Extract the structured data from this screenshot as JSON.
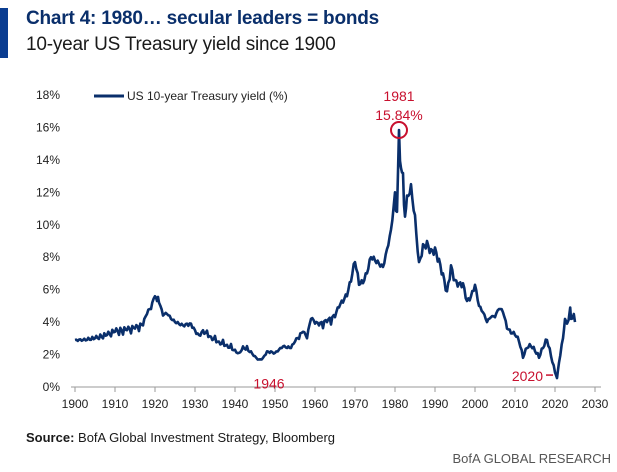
{
  "header": {
    "title": "Chart 4: 1980… secular leaders = bonds",
    "subtitle": "10-year US Treasury yield since 1900"
  },
  "footer": {
    "source_label": "Source:",
    "source_text": "BofA Global Investment Strategy, Bloomberg",
    "credit": "BofA GLOBAL RESEARCH"
  },
  "colors": {
    "series": "#0a2f6b",
    "annotation": "#c8102e",
    "accent": "#0a3d91"
  },
  "chart_data": {
    "type": "line",
    "title": "10-year US Treasury yield since 1900",
    "xlabel": "",
    "ylabel": "",
    "xlim": [
      1900,
      2030
    ],
    "ylim": [
      0,
      18
    ],
    "x_ticks": [
      1900,
      1910,
      1920,
      1930,
      1940,
      1950,
      1960,
      1970,
      1980,
      1990,
      2000,
      2010,
      2020,
      2030
    ],
    "y_ticks": [
      0,
      2,
      4,
      6,
      8,
      10,
      12,
      14,
      16,
      18
    ],
    "y_tick_format": "%",
    "grid": false,
    "legend_position": "top-left",
    "series": [
      {
        "name": "US 10-year Treasury yield (%)",
        "x": [
          1900,
          1902,
          1905,
          1908,
          1910,
          1913,
          1915,
          1917,
          1918,
          1919,
          1920,
          1920.5,
          1921,
          1922,
          1923,
          1924,
          1925,
          1927,
          1929,
          1930,
          1931,
          1932,
          1934,
          1936,
          1938,
          1940,
          1941,
          1942,
          1944,
          1945,
          1946,
          1947,
          1948,
          1950,
          1952,
          1954,
          1955,
          1957,
          1958,
          1959,
          1960,
          1961,
          1963,
          1965,
          1966,
          1967,
          1968,
          1969,
          1970,
          1971,
          1972,
          1973,
          1974,
          1975,
          1976,
          1977,
          1978,
          1979,
          1980,
          1980.5,
          1981,
          1981.5,
          1982,
          1982.5,
          1983,
          1984,
          1985,
          1986,
          1987,
          1988,
          1989,
          1990,
          1991,
          1992,
          1993,
          1994,
          1995,
          1996,
          1997,
          1998,
          1999,
          2000,
          2001,
          2002,
          2003,
          2004,
          2005,
          2006,
          2007,
          2008,
          2009,
          2010,
          2011,
          2012,
          2013,
          2014,
          2015,
          2016,
          2017,
          2018,
          2019,
          2020,
          2020.5,
          2021,
          2022,
          2022.5,
          2023,
          2023.8,
          2024,
          2024.7,
          2025
        ],
        "values": [
          2.9,
          2.9,
          3.0,
          3.2,
          3.4,
          3.5,
          3.6,
          3.8,
          4.5,
          4.8,
          5.6,
          5.3,
          5.2,
          4.4,
          4.5,
          4.2,
          4.0,
          3.8,
          3.9,
          3.5,
          3.2,
          3.5,
          3.1,
          2.8,
          2.6,
          2.3,
          2.1,
          2.5,
          2.2,
          1.9,
          1.7,
          1.8,
          2.2,
          2.1,
          2.5,
          2.4,
          2.8,
          3.4,
          3.0,
          4.2,
          3.9,
          3.8,
          4.0,
          4.3,
          4.9,
          5.2,
          5.6,
          6.5,
          7.7,
          6.3,
          6.4,
          7.0,
          8.0,
          7.8,
          7.6,
          7.4,
          8.5,
          9.7,
          12.0,
          10.8,
          15.84,
          13.5,
          13.2,
          10.5,
          11.8,
          12.5,
          10.6,
          7.7,
          8.8,
          9.0,
          8.5,
          8.6,
          7.9,
          7.0,
          5.9,
          7.5,
          6.6,
          6.4,
          6.4,
          5.3,
          5.6,
          6.3,
          5.0,
          4.6,
          4.0,
          4.3,
          4.3,
          4.8,
          4.6,
          3.6,
          3.3,
          3.2,
          2.8,
          1.8,
          2.4,
          2.5,
          2.2,
          1.8,
          2.4,
          2.9,
          1.9,
          0.9,
          0.55,
          1.5,
          3.0,
          4.2,
          3.9,
          4.9,
          4.2,
          4.5,
          4.0
        ]
      }
    ],
    "annotations": [
      {
        "label": "1981",
        "value_label": "15.84%",
        "x": 1981,
        "y": 15.84,
        "marker": "circle"
      },
      {
        "label": "1946",
        "x": 1946,
        "y": 1.7
      },
      {
        "label": "2020",
        "x": 2020,
        "y": 0.55
      }
    ]
  }
}
